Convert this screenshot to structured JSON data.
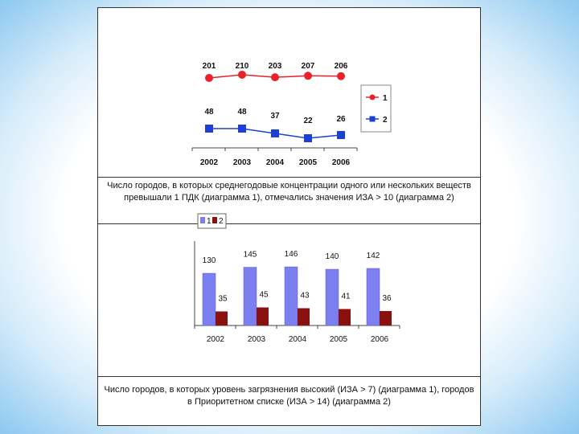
{
  "captions": {
    "line_chart": "Число городов, в которых среднегодовые концентрации одного или нескольких веществ превышали 1 ПДК (диаграмма 1), отмечались значения ИЗА > 10 (диаграмма 2)",
    "bar_chart": "Число городов, в которых уровень загрязнения высокий (ИЗА > 7) (диаграмма 1), городов в Приоритетном списке (ИЗА > 14) (диаграмма 2)"
  },
  "colors": {
    "series1_line": "#e8222a",
    "series2_line": "#1c3fd6",
    "bar1": "#7b7ff0",
    "bar2": "#8b1010"
  },
  "chart_data": [
    {
      "type": "line",
      "categories": [
        "2002",
        "2003",
        "2004",
        "2005",
        "2006"
      ],
      "series": [
        {
          "name": "1",
          "values": [
            201,
            210,
            203,
            207,
            206
          ],
          "marker": "circle"
        },
        {
          "name": "2",
          "values": [
            48,
            48,
            37,
            22,
            26
          ],
          "marker": "square"
        }
      ],
      "legend_placement": "right",
      "grid": false
    },
    {
      "type": "bar",
      "categories": [
        "2002",
        "2003",
        "2004",
        "2005",
        "2006"
      ],
      "series": [
        {
          "name": "1",
          "values": [
            130,
            145,
            146,
            140,
            142
          ]
        },
        {
          "name": "2",
          "values": [
            35,
            45,
            43,
            41,
            36
          ]
        }
      ],
      "legend_placement": "top-left",
      "grid": false
    }
  ]
}
